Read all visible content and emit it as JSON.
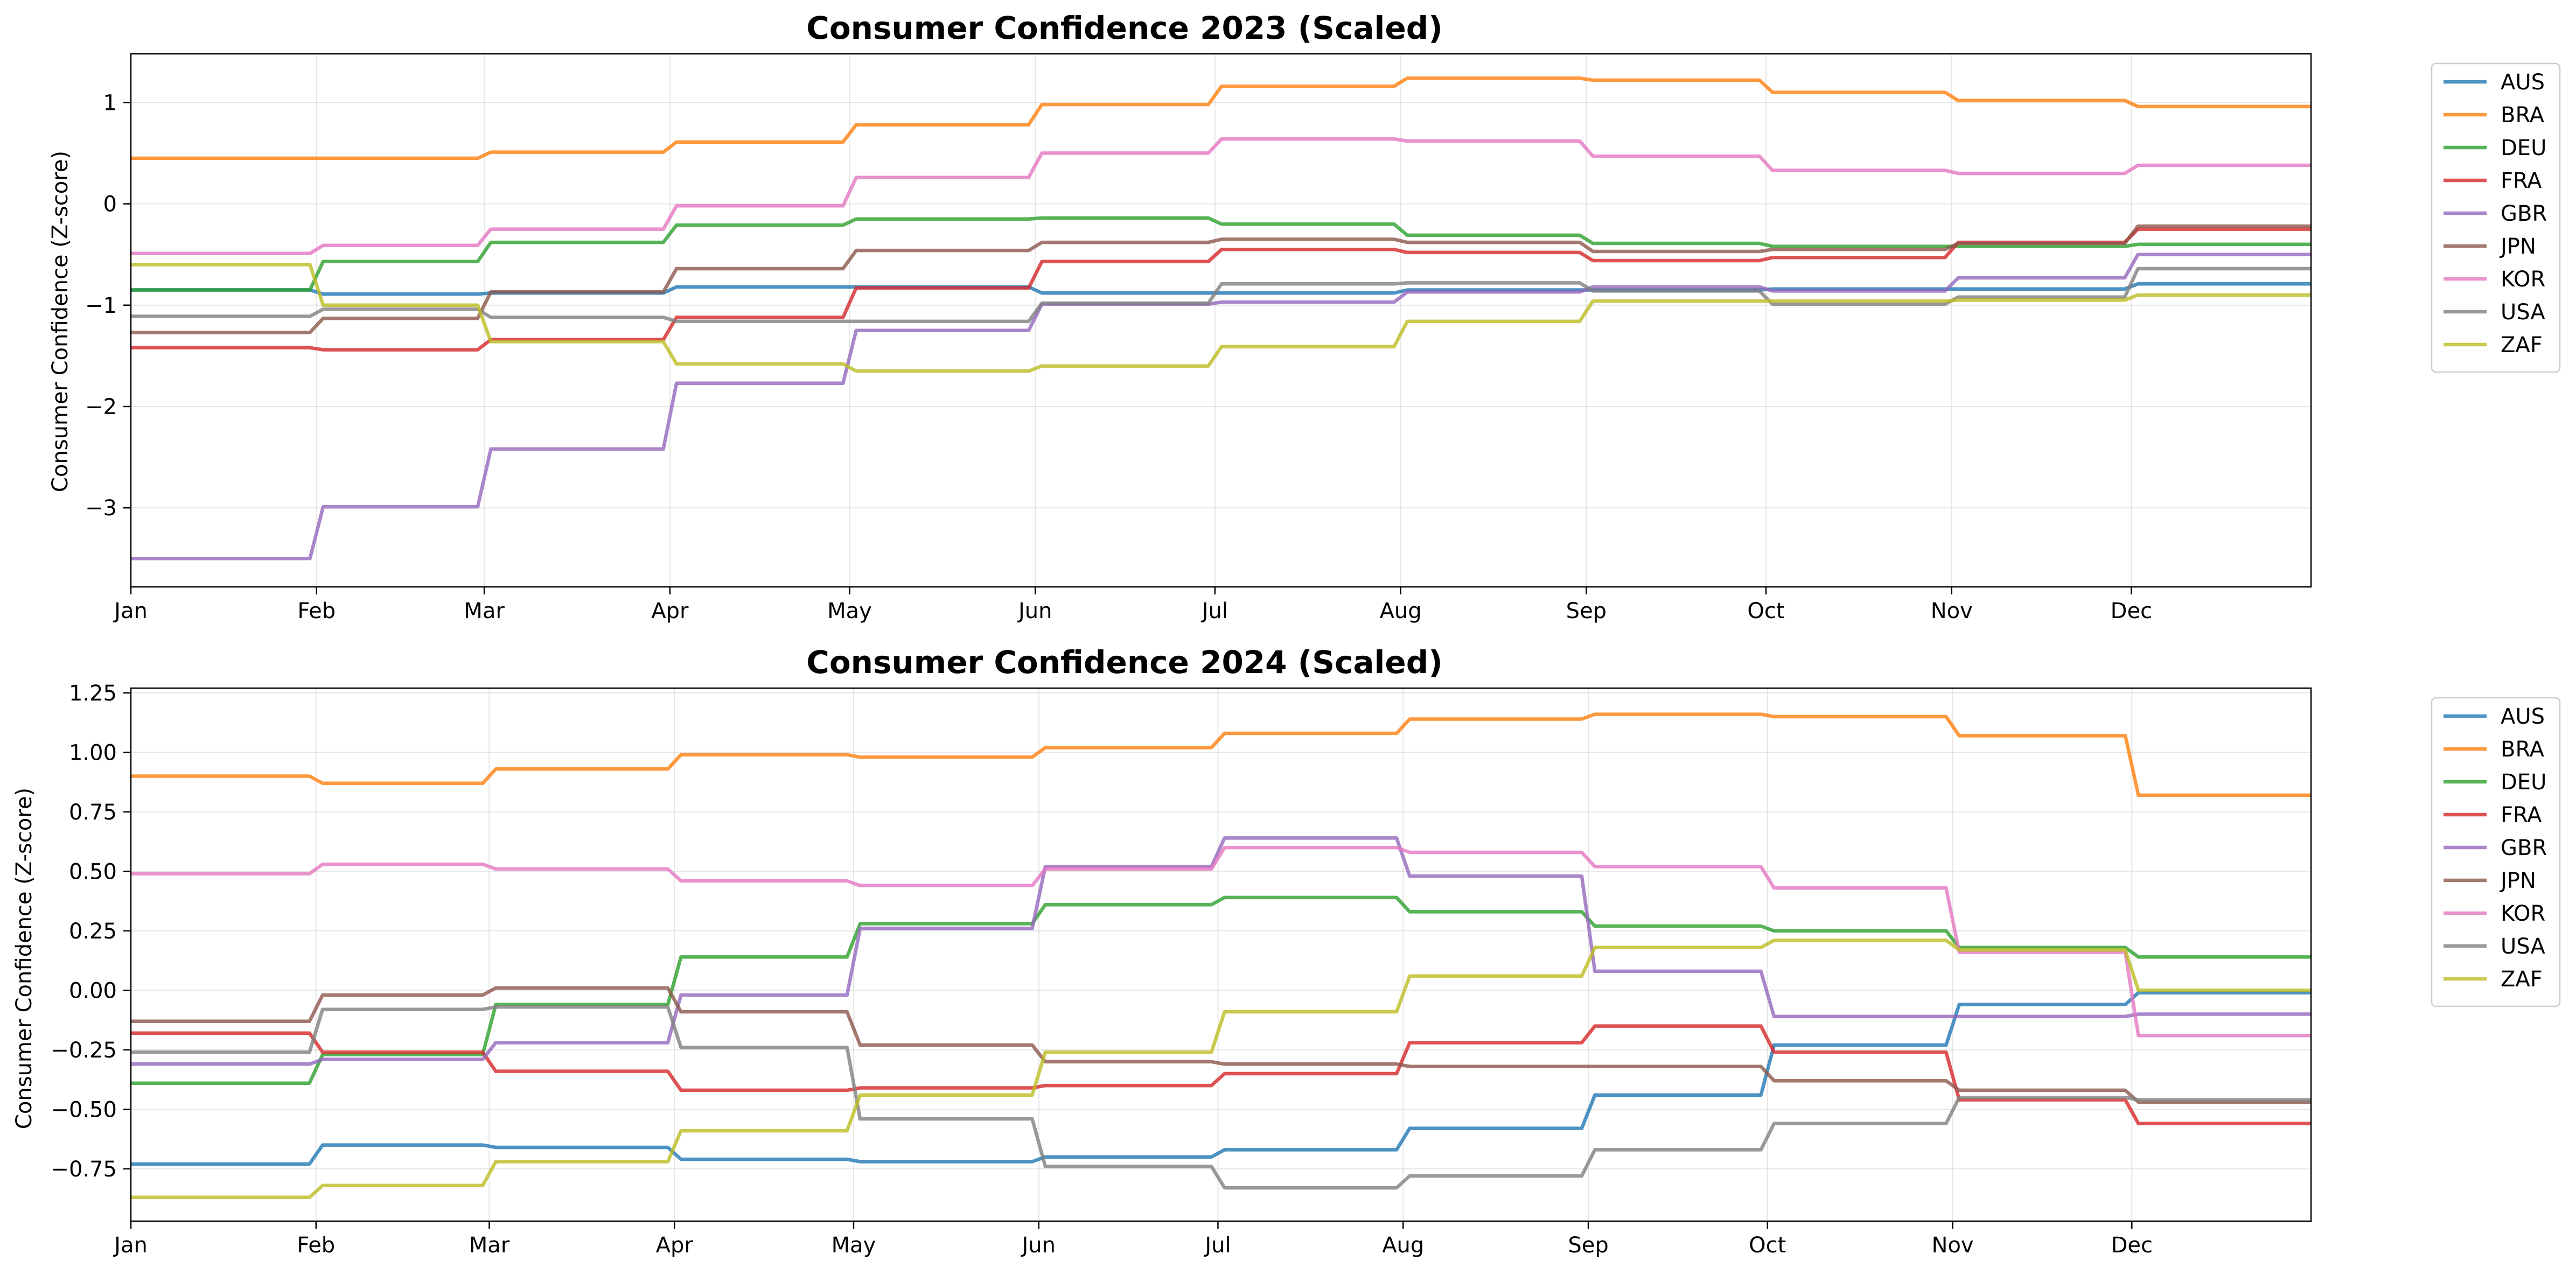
{
  "chart_data": [
    {
      "type": "line",
      "title": "Consumer Confidence 2023 (Scaled)",
      "xlabel": "",
      "ylabel": "Consumer Confidence (Z-score)",
      "x_tick_labels": [
        "Jan",
        "Feb",
        "Mar",
        "Apr",
        "May",
        "Jun",
        "Jul",
        "Aug",
        "Sep",
        "Oct",
        "Nov",
        "Dec"
      ],
      "x_tick_days": [
        0,
        31,
        59,
        90,
        120,
        151,
        181,
        212,
        243,
        273,
        304,
        334
      ],
      "xlim_days": [
        0,
        364
      ],
      "ylim": [
        -3.78,
        1.48
      ],
      "yticks": [
        -3,
        -2,
        -1,
        0,
        1
      ],
      "ytick_labels": [
        "−3",
        "−2",
        "−1",
        "0",
        "1"
      ],
      "grid": true,
      "legend_position": "outside-right-top",
      "series": [
        {
          "name": "AUS",
          "color": "#1f77b4",
          "values": [
            -0.85,
            -0.89,
            -0.88,
            -0.82,
            -0.82,
            -0.88,
            -0.88,
            -0.85,
            -0.85,
            -0.84,
            -0.84,
            -0.79
          ]
        },
        {
          "name": "BRA",
          "color": "#ff7f0e",
          "values": [
            0.45,
            0.45,
            0.51,
            0.61,
            0.78,
            0.98,
            1.16,
            1.24,
            1.22,
            1.1,
            1.02,
            0.96
          ]
        },
        {
          "name": "DEU",
          "color": "#2ca02c",
          "values": [
            -0.85,
            -0.57,
            -0.38,
            -0.21,
            -0.15,
            -0.14,
            -0.2,
            -0.31,
            -0.39,
            -0.42,
            -0.42,
            -0.4
          ]
        },
        {
          "name": "FRA",
          "color": "#d62728",
          "values": [
            -1.42,
            -1.44,
            -1.34,
            -1.12,
            -0.83,
            -0.57,
            -0.45,
            -0.48,
            -0.56,
            -0.53,
            -0.38,
            -0.25
          ]
        },
        {
          "name": "GBR",
          "color": "#9467bd",
          "values": [
            -3.5,
            -2.99,
            -2.42,
            -1.77,
            -1.25,
            -0.99,
            -0.97,
            -0.87,
            -0.82,
            -0.86,
            -0.73,
            -0.5
          ]
        },
        {
          "name": "JPN",
          "color": "#8c564b",
          "values": [
            -1.27,
            -1.13,
            -0.87,
            -0.64,
            -0.46,
            -0.38,
            -0.35,
            -0.38,
            -0.47,
            -0.45,
            -0.39,
            -0.22
          ]
        },
        {
          "name": "KOR",
          "color": "#e377c2",
          "values": [
            -0.49,
            -0.41,
            -0.25,
            -0.02,
            0.26,
            0.5,
            0.64,
            0.62,
            0.47,
            0.33,
            0.3,
            0.38
          ]
        },
        {
          "name": "USA",
          "color": "#7f7f7f",
          "values": [
            -1.11,
            -1.04,
            -1.12,
            -1.16,
            -1.16,
            -0.98,
            -0.79,
            -0.78,
            -0.86,
            -0.99,
            -0.92,
            -0.64
          ]
        },
        {
          "name": "ZAF",
          "color": "#bcbd22",
          "values": [
            -0.6,
            -1.0,
            -1.36,
            -1.58,
            -1.65,
            -1.6,
            -1.41,
            -1.16,
            -0.96,
            -0.96,
            -0.95,
            -0.9
          ]
        }
      ]
    },
    {
      "type": "line",
      "title": "Consumer Confidence 2024 (Scaled)",
      "xlabel": "",
      "ylabel": "Consumer Confidence (Z-score)",
      "x_tick_labels": [
        "Jan",
        "Feb",
        "Mar",
        "Apr",
        "May",
        "Jun",
        "Jul",
        "Aug",
        "Sep",
        "Oct",
        "Nov",
        "Dec"
      ],
      "x_tick_days": [
        0,
        31,
        60,
        91,
        121,
        152,
        182,
        213,
        244,
        274,
        305,
        335
      ],
      "xlim_days": [
        0,
        365
      ],
      "ylim": [
        -0.97,
        1.27
      ],
      "yticks": [
        -0.75,
        -0.5,
        -0.25,
        0.0,
        0.25,
        0.5,
        0.75,
        1.0,
        1.25
      ],
      "ytick_labels": [
        "−0.75",
        "−0.50",
        "−0.25",
        "0.00",
        "0.25",
        "0.50",
        "0.75",
        "1.00",
        "1.25"
      ],
      "grid": true,
      "legend_position": "outside-right-top",
      "series": [
        {
          "name": "AUS",
          "color": "#1f77b4",
          "values": [
            -0.73,
            -0.65,
            -0.66,
            -0.71,
            -0.72,
            -0.7,
            -0.67,
            -0.58,
            -0.44,
            -0.23,
            -0.06,
            -0.01
          ]
        },
        {
          "name": "BRA",
          "color": "#ff7f0e",
          "values": [
            0.9,
            0.87,
            0.93,
            0.99,
            0.98,
            1.02,
            1.08,
            1.14,
            1.16,
            1.15,
            1.07,
            0.82
          ]
        },
        {
          "name": "DEU",
          "color": "#2ca02c",
          "values": [
            -0.39,
            -0.27,
            -0.06,
            0.14,
            0.28,
            0.36,
            0.39,
            0.33,
            0.27,
            0.25,
            0.18,
            0.14
          ]
        },
        {
          "name": "FRA",
          "color": "#d62728",
          "values": [
            -0.18,
            -0.26,
            -0.34,
            -0.42,
            -0.41,
            -0.4,
            -0.35,
            -0.22,
            -0.15,
            -0.26,
            -0.46,
            -0.56
          ]
        },
        {
          "name": "GBR",
          "color": "#9467bd",
          "values": [
            -0.31,
            -0.29,
            -0.22,
            -0.02,
            0.26,
            0.52,
            0.64,
            0.48,
            0.08,
            -0.11,
            -0.11,
            -0.1
          ]
        },
        {
          "name": "JPN",
          "color": "#8c564b",
          "values": [
            -0.13,
            -0.02,
            0.01,
            -0.09,
            -0.23,
            -0.3,
            -0.31,
            -0.32,
            -0.32,
            -0.38,
            -0.42,
            -0.47
          ]
        },
        {
          "name": "KOR",
          "color": "#e377c2",
          "values": [
            0.49,
            0.53,
            0.51,
            0.46,
            0.44,
            0.51,
            0.6,
            0.58,
            0.52,
            0.43,
            0.16,
            -0.19
          ]
        },
        {
          "name": "USA",
          "color": "#7f7f7f",
          "values": [
            -0.26,
            -0.08,
            -0.07,
            -0.24,
            -0.54,
            -0.74,
            -0.83,
            -0.78,
            -0.67,
            -0.56,
            -0.45,
            -0.46
          ]
        },
        {
          "name": "ZAF",
          "color": "#bcbd22",
          "values": [
            -0.87,
            -0.82,
            -0.72,
            -0.59,
            -0.44,
            -0.26,
            -0.09,
            0.06,
            0.18,
            0.21,
            0.17,
            0.0
          ]
        }
      ]
    }
  ]
}
